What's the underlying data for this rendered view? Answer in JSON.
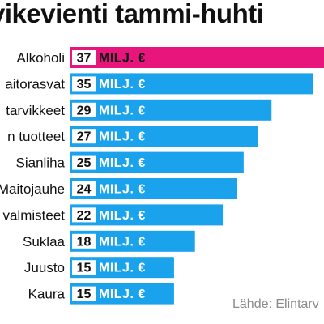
{
  "chart_title": "vikevienti tammi-huhti",
  "source": "Lähde: Elintarv",
  "colors": {
    "highlight": "#e8157d",
    "bar": "#1aa3ec",
    "value_box": "#ffffff",
    "text": "#111111"
  },
  "unit_label": "MILJ. €",
  "chart_data": {
    "type": "bar",
    "orientation": "horizontal",
    "title": "vikevienti tammi-huhti",
    "categories": [
      "Alkoholi",
      "aitorasvat",
      "tarvikkeet",
      "n tuotteet",
      "Sianliha",
      "Maitojauhe",
      "valmisteet",
      "Suklaa",
      "Juusto",
      "Kaura"
    ],
    "values": [
      37,
      35,
      29,
      27,
      25,
      24,
      22,
      18,
      15,
      15
    ],
    "value_labels": [
      "37",
      "35",
      "29",
      "27",
      "25",
      "24",
      "22",
      "18",
      "15",
      "15"
    ],
    "unit": "MILJ. €",
    "highlight_index": 0,
    "xlim": [
      0,
      37
    ]
  }
}
